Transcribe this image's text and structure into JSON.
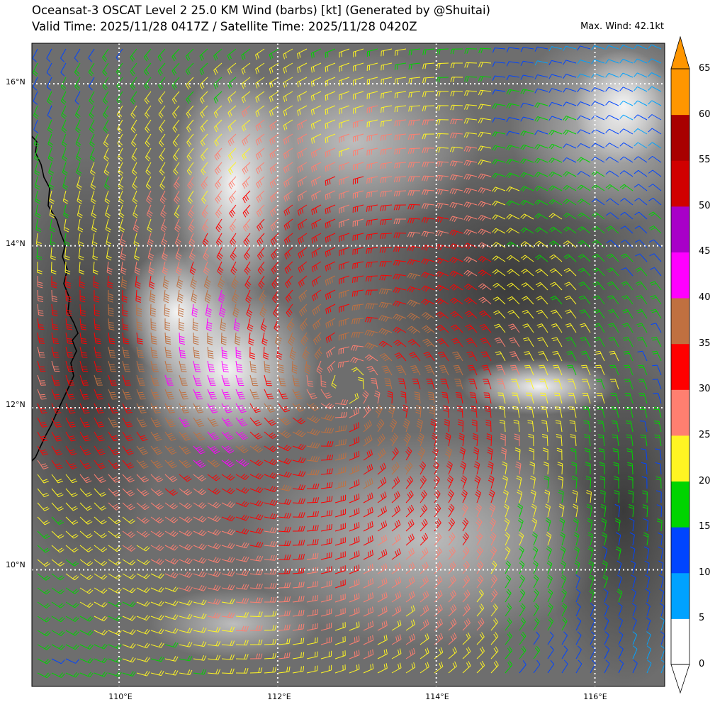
{
  "header": {
    "title_line1": "Oceansat-3 OSCAT Level 2 25.0 KM Wind (barbs) [kt] (Generated by @Shuitai)",
    "title_line2": "Valid Time: 2025/11/28 0417Z / Satellite Time: 2025/11/28 0420Z",
    "max_wind": "Max. Wind: 42.1kt"
  },
  "map": {
    "lon_range": [
      108.9,
      116.88
    ],
    "lat_range": [
      8.56,
      16.5
    ],
    "lat_labels": [
      "16°N",
      "14°N",
      "12°N",
      "10°N"
    ],
    "lon_labels": [
      "110°E",
      "112°E",
      "114°E",
      "116°E"
    ],
    "storm_center": {
      "lon": 112.85,
      "lat": 12.3
    }
  },
  "colorbar": {
    "labels": [
      "0",
      "5",
      "10",
      "15",
      "20",
      "25",
      "30",
      "35",
      "40",
      "45",
      "50",
      "55",
      "60",
      "65"
    ],
    "colors": [
      "#ffffff",
      "#00a2ff",
      "#0045ff",
      "#00d400",
      "#fff523",
      "#ff7f70",
      "#ff0000",
      "#c07040",
      "#ff00ff",
      "#a800c8",
      "#d00000",
      "#a80000",
      "#ff9600"
    ]
  }
}
